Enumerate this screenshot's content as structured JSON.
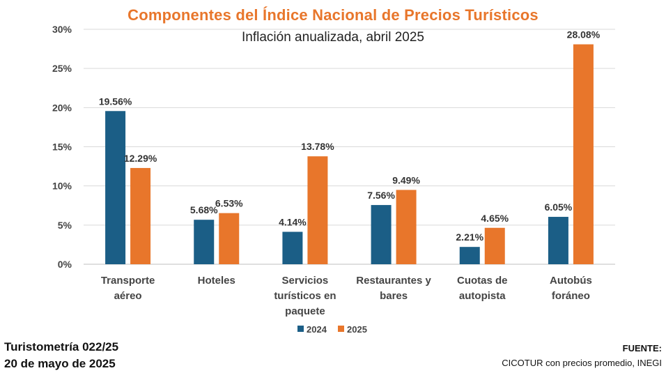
{
  "chart_data": {
    "type": "bar",
    "title": "Componentes del Índice Nacional de Precios Turísticos",
    "subtitle": "Inflación anualizada, abril 2025",
    "categories": [
      [
        "Transporte",
        "aéreo"
      ],
      [
        "Hoteles"
      ],
      [
        "Servicios",
        "turísticos en",
        "paquete"
      ],
      [
        "Restaurantes y",
        "bares"
      ],
      [
        "Cuotas de",
        "autopista"
      ],
      [
        "Autobús",
        "foráneo"
      ]
    ],
    "series": [
      {
        "name": "2024",
        "color": "#1b5e86",
        "values": [
          19.56,
          5.68,
          4.14,
          7.56,
          2.21,
          6.05
        ],
        "labels": [
          "19.56%",
          "5.68%",
          "4.14%",
          "7.56%",
          "2.21%",
          "6.05%"
        ]
      },
      {
        "name": "2025",
        "color": "#e8762b",
        "values": [
          12.29,
          6.53,
          13.78,
          9.49,
          4.65,
          28.08
        ],
        "labels": [
          "12.29%",
          "6.53%",
          "13.78%",
          "9.49%",
          "4.65%",
          "28.08%"
        ]
      }
    ],
    "yticks": [
      0,
      5,
      10,
      15,
      20,
      25,
      30
    ],
    "ytick_labels": [
      "0%",
      "5%",
      "10%",
      "15%",
      "20%",
      "25%",
      "30%"
    ],
    "ylim": [
      0,
      30
    ],
    "grid": true,
    "legend_position": "bottom"
  },
  "footer": {
    "report": "Turistometría 022/25",
    "date": "20 de mayo de 2025",
    "source_label": "FUENTE:",
    "source_text": "CICOTUR con precios promedio, INEGI"
  }
}
